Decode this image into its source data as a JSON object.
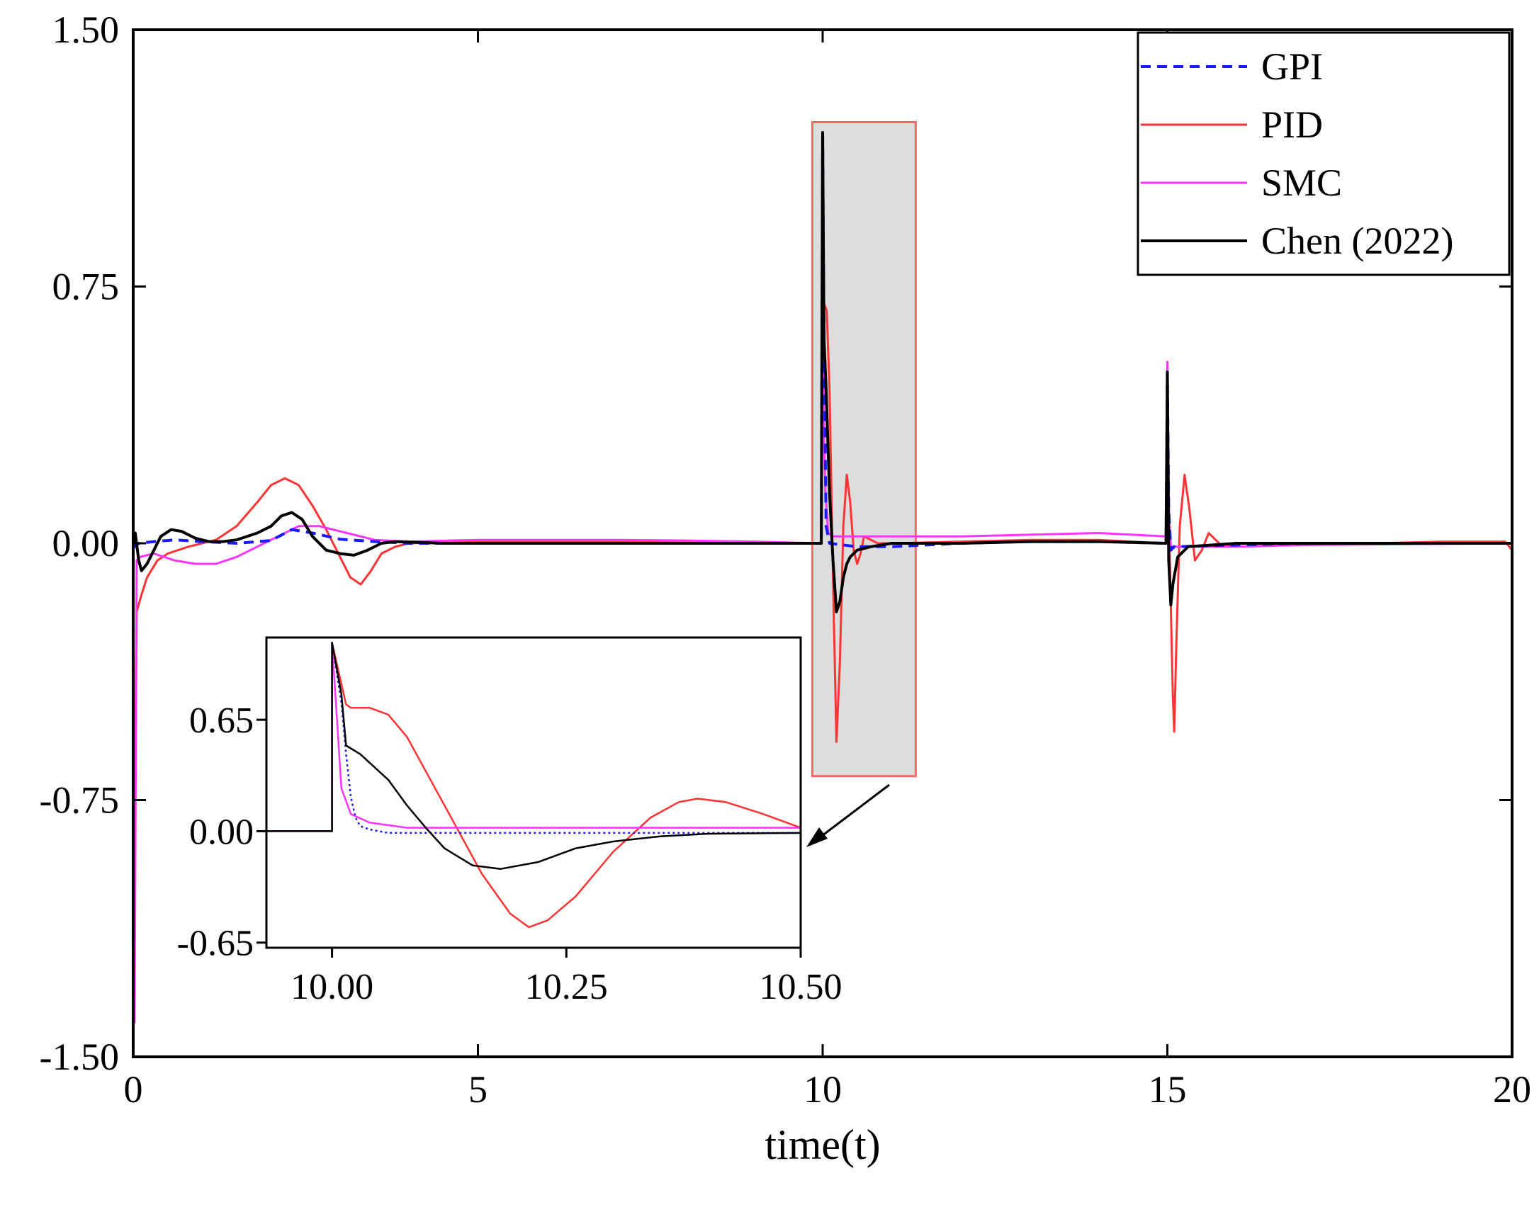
{
  "chart_data": {
    "type": "line",
    "title": "",
    "xlabel": "time(t)",
    "ylabel": "",
    "xlim": [
      0,
      20
    ],
    "ylim": [
      -1.5,
      1.5
    ],
    "x_ticks": [
      0,
      5,
      10,
      15,
      20
    ],
    "x_tick_labels": [
      "0",
      "5",
      "10",
      "15",
      "20"
    ],
    "y_ticks": [
      -1.5,
      -0.75,
      0.0,
      0.75,
      1.5
    ],
    "y_tick_labels": [
      "-1.50",
      "-0.75",
      "0.00",
      "0.75",
      "1.50"
    ],
    "legend_position": "top-right",
    "series": [
      {
        "name": "GPI",
        "color": "#1a1aff",
        "style": "dashed",
        "points": [
          [
            0,
            0
          ],
          [
            0.03,
            -0.01
          ],
          [
            0.08,
            0
          ],
          [
            0.3,
            0.005
          ],
          [
            0.6,
            0.01
          ],
          [
            1.0,
            0.005
          ],
          [
            1.5,
            0
          ],
          [
            2.0,
            0.008
          ],
          [
            2.3,
            0.04
          ],
          [
            2.6,
            0.03
          ],
          [
            3.0,
            0.012
          ],
          [
            3.5,
            0.005
          ],
          [
            4.0,
            0
          ],
          [
            6.0,
            0
          ],
          [
            9.98,
            0
          ],
          [
            10.0,
            1.2
          ],
          [
            10.02,
            0.6
          ],
          [
            10.05,
            0.05
          ],
          [
            10.1,
            0
          ],
          [
            10.5,
            -0.01
          ],
          [
            11.0,
            -0.01
          ],
          [
            12.0,
            0
          ],
          [
            13.0,
            0.005
          ],
          [
            14.0,
            0.005
          ],
          [
            14.98,
            0
          ],
          [
            15.0,
            0.5
          ],
          [
            15.02,
            0.1
          ],
          [
            15.05,
            -0.02
          ],
          [
            15.1,
            -0.01
          ],
          [
            16.0,
            -0.005
          ],
          [
            17.0,
            0
          ],
          [
            20.0,
            0
          ]
        ]
      },
      {
        "name": "PID",
        "color": "#ff3333",
        "style": "solid",
        "points": [
          [
            0,
            0
          ],
          [
            0.02,
            -1.0
          ],
          [
            0.05,
            -0.2
          ],
          [
            0.12,
            -0.15
          ],
          [
            0.2,
            -0.1
          ],
          [
            0.35,
            -0.05
          ],
          [
            0.5,
            -0.03
          ],
          [
            0.8,
            -0.01
          ],
          [
            1.2,
            0.01
          ],
          [
            1.5,
            0.05
          ],
          [
            1.8,
            0.12
          ],
          [
            2.0,
            0.17
          ],
          [
            2.2,
            0.19
          ],
          [
            2.4,
            0.17
          ],
          [
            2.6,
            0.11
          ],
          [
            2.8,
            0.04
          ],
          [
            3.0,
            -0.04
          ],
          [
            3.15,
            -0.1
          ],
          [
            3.3,
            -0.12
          ],
          [
            3.45,
            -0.08
          ],
          [
            3.6,
            -0.03
          ],
          [
            3.8,
            -0.01
          ],
          [
            4.0,
            0
          ],
          [
            5.0,
            0.005
          ],
          [
            7.0,
            0.005
          ],
          [
            9.98,
            0
          ],
          [
            10.0,
            1.2
          ],
          [
            10.02,
            0.7
          ],
          [
            10.06,
            0.68
          ],
          [
            10.1,
            0.45
          ],
          [
            10.15,
            -0.1
          ],
          [
            10.2,
            -0.58
          ],
          [
            10.25,
            -0.35
          ],
          [
            10.3,
            0.05
          ],
          [
            10.35,
            0.2
          ],
          [
            10.4,
            0.12
          ],
          [
            10.45,
            -0.02
          ],
          [
            10.5,
            -0.06
          ],
          [
            10.55,
            -0.03
          ],
          [
            10.6,
            0.02
          ],
          [
            10.7,
            0.01
          ],
          [
            10.8,
            0
          ],
          [
            11.0,
            0
          ],
          [
            12.0,
            0.005
          ],
          [
            13.0,
            0.01
          ],
          [
            14.0,
            0.01
          ],
          [
            14.98,
            0
          ],
          [
            15.0,
            0.5
          ],
          [
            15.03,
            0
          ],
          [
            15.08,
            -0.45
          ],
          [
            15.1,
            -0.55
          ],
          [
            15.13,
            -0.3
          ],
          [
            15.18,
            0.05
          ],
          [
            15.25,
            0.2
          ],
          [
            15.32,
            0.1
          ],
          [
            15.4,
            -0.05
          ],
          [
            15.5,
            -0.02
          ],
          [
            15.6,
            0.03
          ],
          [
            15.7,
            0.01
          ],
          [
            15.8,
            -0.01
          ],
          [
            16.0,
            0
          ],
          [
            17.0,
            -0.005
          ],
          [
            19.0,
            0.005
          ],
          [
            19.9,
            0.005
          ],
          [
            20.0,
            -0.02
          ]
        ]
      },
      {
        "name": "SMC",
        "color": "#ff33ff",
        "style": "solid",
        "points": [
          [
            0,
            0
          ],
          [
            0.02,
            -1.4
          ],
          [
            0.05,
            -0.05
          ],
          [
            0.1,
            -0.04
          ],
          [
            0.3,
            -0.03
          ],
          [
            0.6,
            -0.05
          ],
          [
            0.9,
            -0.06
          ],
          [
            1.2,
            -0.06
          ],
          [
            1.5,
            -0.04
          ],
          [
            1.8,
            -0.01
          ],
          [
            2.1,
            0.02
          ],
          [
            2.4,
            0.05
          ],
          [
            2.7,
            0.05
          ],
          [
            3.0,
            0.035
          ],
          [
            3.5,
            0.01
          ],
          [
            4.0,
            0.005
          ],
          [
            5.0,
            0.01
          ],
          [
            6.0,
            0.01
          ],
          [
            7.0,
            0.01
          ],
          [
            8.0,
            0.008
          ],
          [
            9.0,
            0.005
          ],
          [
            9.98,
            0
          ],
          [
            10.0,
            1.2
          ],
          [
            10.02,
            0.3
          ],
          [
            10.04,
            0.15
          ],
          [
            10.08,
            0.03
          ],
          [
            10.15,
            0.02
          ],
          [
            11.0,
            0.02
          ],
          [
            12.0,
            0.02
          ],
          [
            13.0,
            0.025
          ],
          [
            14.0,
            0.03
          ],
          [
            14.98,
            0.02
          ],
          [
            15.0,
            0.53
          ],
          [
            15.02,
            0.1
          ],
          [
            15.05,
            -0.01
          ],
          [
            15.2,
            -0.01
          ],
          [
            16.0,
            -0.01
          ],
          [
            17.0,
            -0.005
          ],
          [
            20.0,
            0
          ]
        ]
      },
      {
        "name": "Chen (2022)",
        "color": "#000000",
        "style": "solid",
        "points": [
          [
            0,
            0
          ],
          [
            0.03,
            0.03
          ],
          [
            0.08,
            -0.05
          ],
          [
            0.12,
            -0.08
          ],
          [
            0.2,
            -0.06
          ],
          [
            0.3,
            -0.02
          ],
          [
            0.4,
            0.02
          ],
          [
            0.55,
            0.04
          ],
          [
            0.7,
            0.035
          ],
          [
            0.9,
            0.015
          ],
          [
            1.1,
            0.005
          ],
          [
            1.3,
            0.005
          ],
          [
            1.5,
            0.01
          ],
          [
            1.8,
            0.03
          ],
          [
            2.0,
            0.05
          ],
          [
            2.15,
            0.08
          ],
          [
            2.3,
            0.09
          ],
          [
            2.45,
            0.07
          ],
          [
            2.6,
            0.02
          ],
          [
            2.8,
            -0.02
          ],
          [
            3.0,
            -0.03
          ],
          [
            3.2,
            -0.035
          ],
          [
            3.4,
            -0.02
          ],
          [
            3.6,
            0
          ],
          [
            3.8,
            0.005
          ],
          [
            4.5,
            0
          ],
          [
            7.0,
            0
          ],
          [
            9.98,
            0
          ],
          [
            10.0,
            1.2
          ],
          [
            10.02,
            0.6
          ],
          [
            10.05,
            0.45
          ],
          [
            10.1,
            0.15
          ],
          [
            10.15,
            -0.05
          ],
          [
            10.2,
            -0.2
          ],
          [
            10.25,
            -0.17
          ],
          [
            10.3,
            -0.1
          ],
          [
            10.35,
            -0.06
          ],
          [
            10.4,
            -0.04
          ],
          [
            10.5,
            -0.02
          ],
          [
            10.7,
            -0.01
          ],
          [
            11.0,
            0
          ],
          [
            12.0,
            0
          ],
          [
            13.0,
            0.005
          ],
          [
            14.0,
            0.005
          ],
          [
            14.98,
            0
          ],
          [
            15.0,
            0.5
          ],
          [
            15.02,
            -0.05
          ],
          [
            15.05,
            -0.18
          ],
          [
            15.08,
            -0.12
          ],
          [
            15.15,
            -0.04
          ],
          [
            15.3,
            -0.01
          ],
          [
            16.0,
            0
          ],
          [
            20.0,
            0
          ]
        ]
      }
    ],
    "highlight_region": {
      "x_range": [
        9.85,
        11.35
      ],
      "y_range": [
        -0.68,
        1.23
      ],
      "fill": "#dddddd",
      "stroke": "#ff6666"
    },
    "inset": {
      "type": "line",
      "xlim": [
        9.93,
        10.5
      ],
      "ylim": [
        -0.68,
        1.13
      ],
      "x_ticks": [
        10.0,
        10.25,
        10.5
      ],
      "x_tick_labels": [
        "10.00",
        "10.25",
        "10.50"
      ],
      "y_ticks": [
        -0.65,
        0.0,
        0.65
      ],
      "y_tick_labels": [
        "-0.65",
        "0.00",
        "0.65"
      ],
      "series": [
        {
          "name": "PID",
          "color": "#ff3333",
          "style": "solid",
          "points": [
            [
              9.93,
              0
            ],
            [
              10.0,
              0
            ],
            [
              10.0,
              1.1
            ],
            [
              10.015,
              0.74
            ],
            [
              10.02,
              0.72
            ],
            [
              10.04,
              0.72
            ],
            [
              10.06,
              0.68
            ],
            [
              10.08,
              0.55
            ],
            [
              10.1,
              0.35
            ],
            [
              10.13,
              0.05
            ],
            [
              10.16,
              -0.25
            ],
            [
              10.19,
              -0.48
            ],
            [
              10.21,
              -0.56
            ],
            [
              10.23,
              -0.52
            ],
            [
              10.26,
              -0.38
            ],
            [
              10.3,
              -0.12
            ],
            [
              10.34,
              0.08
            ],
            [
              10.37,
              0.17
            ],
            [
              10.39,
              0.19
            ],
            [
              10.42,
              0.17
            ],
            [
              10.46,
              0.1
            ],
            [
              10.5,
              0.02
            ]
          ]
        },
        {
          "name": "GPI",
          "color": "#1a1aff",
          "style": "dotted",
          "points": [
            [
              9.93,
              0
            ],
            [
              10.0,
              0
            ],
            [
              10.0,
              1.1
            ],
            [
              10.01,
              0.75
            ],
            [
              10.015,
              0.45
            ],
            [
              10.02,
              0.2
            ],
            [
              10.025,
              0.08
            ],
            [
              10.03,
              0.03
            ],
            [
              10.04,
              0.01
            ],
            [
              10.06,
              -0.01
            ],
            [
              10.1,
              -0.01
            ],
            [
              10.2,
              -0.01
            ],
            [
              10.3,
              -0.01
            ],
            [
              10.4,
              -0.01
            ],
            [
              10.5,
              -0.01
            ]
          ]
        },
        {
          "name": "SMC",
          "color": "#ff33ff",
          "style": "solid",
          "points": [
            [
              9.93,
              0
            ],
            [
              10.0,
              0
            ],
            [
              10.0,
              1.1
            ],
            [
              10.01,
              0.25
            ],
            [
              10.02,
              0.1
            ],
            [
              10.04,
              0.05
            ],
            [
              10.08,
              0.02
            ],
            [
              10.2,
              0.02
            ],
            [
              10.35,
              0.02
            ],
            [
              10.5,
              0.02
            ]
          ]
        },
        {
          "name": "Chen (2022)",
          "color": "#000000",
          "style": "solid",
          "points": [
            [
              9.93,
              0
            ],
            [
              10.0,
              0
            ],
            [
              10.0,
              1.1
            ],
            [
              10.01,
              0.8
            ],
            [
              10.015,
              0.5
            ],
            [
              10.03,
              0.45
            ],
            [
              10.06,
              0.3
            ],
            [
              10.08,
              0.15
            ],
            [
              10.1,
              0.02
            ],
            [
              10.12,
              -0.1
            ],
            [
              10.15,
              -0.2
            ],
            [
              10.18,
              -0.22
            ],
            [
              10.22,
              -0.18
            ],
            [
              10.26,
              -0.1
            ],
            [
              10.3,
              -0.06
            ],
            [
              10.35,
              -0.03
            ],
            [
              10.4,
              -0.015
            ],
            [
              10.5,
              -0.01
            ]
          ]
        }
      ]
    }
  }
}
